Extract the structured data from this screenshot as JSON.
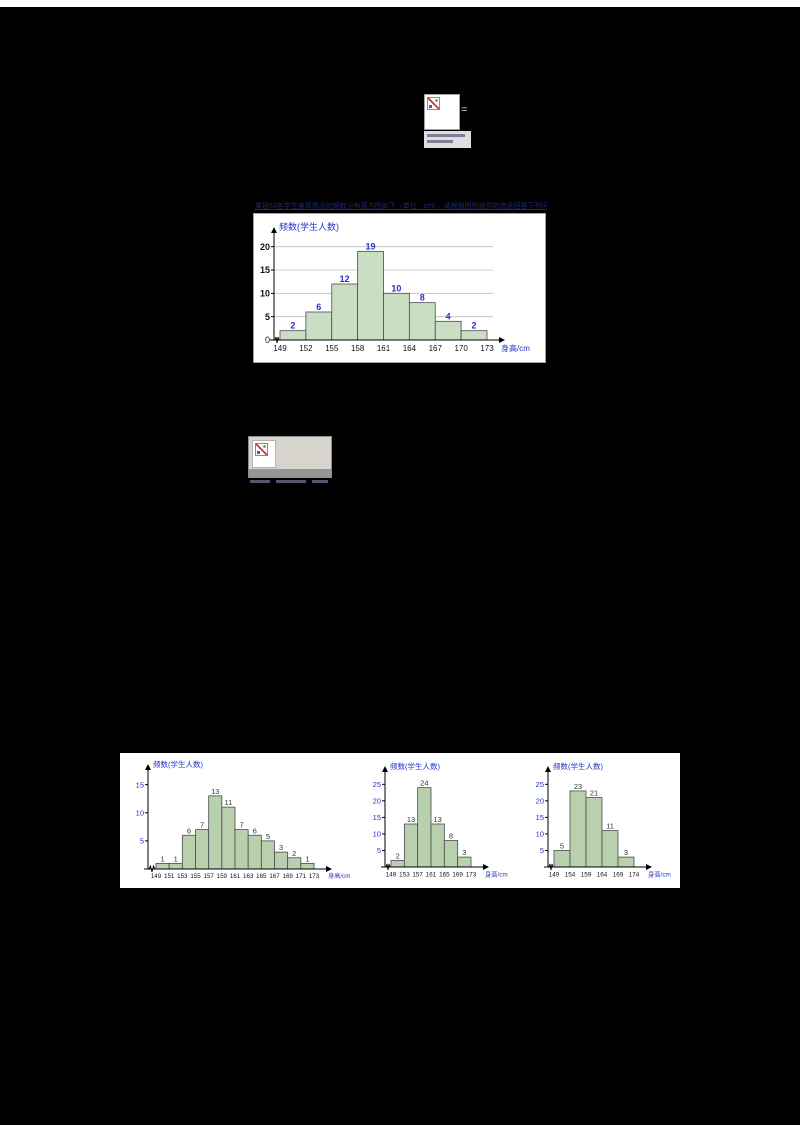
{
  "document": {
    "background_color": "#000000",
    "problem_text": "某班63名学生身高情况的频数分布直方图如下（单位：cm），请根据图形提供的信息回答下列问题："
  },
  "placeholders": {
    "equation_symbol": "="
  },
  "chart_data": [
    {
      "type": "bar",
      "title": "频数(学生人数)",
      "xlabel": "身高/cm",
      "categories": [
        "149",
        "152",
        "155",
        "158",
        "161",
        "164",
        "167",
        "170",
        "173"
      ],
      "values": [
        2,
        6,
        12,
        19,
        10,
        8,
        4,
        2
      ],
      "y_ticks": [
        5,
        10,
        15,
        20
      ],
      "ylim": [
        0,
        21
      ],
      "zero_label": "0",
      "grid": true,
      "axis_break": true,
      "bold_labels": true,
      "legend": "none",
      "bar_color": "#c9dec2",
      "bar_border": "#4a4a4a",
      "value_color": "#2433c6",
      "axis_title_color": "#2433c6",
      "ytick_color": "#111111",
      "xtick_color": "#111111"
    },
    {
      "type": "bar",
      "title": "频数(学生人数)",
      "xlabel": "身高/cm",
      "categories": [
        "149",
        "151",
        "153",
        "155",
        "157",
        "159",
        "161",
        "163",
        "165",
        "167",
        "169",
        "171",
        "173"
      ],
      "values": [
        1,
        1,
        6,
        7,
        13,
        11,
        7,
        6,
        5,
        3,
        2,
        1
      ],
      "y_ticks": [
        5,
        10,
        15
      ],
      "ylim": [
        0,
        16
      ],
      "grid": false,
      "axis_break": true,
      "bold_labels": false,
      "legend": "none",
      "bar_color": "#b9d0ae",
      "bar_border": "#4a4a4a",
      "value_color": "#333333",
      "axis_title_color": "#2433c6",
      "ytick_color": "#2433c6",
      "xtick_color": "#111111"
    },
    {
      "type": "bar",
      "title": "频数(学生人数)",
      "xlabel": "身高/cm",
      "categories": [
        "149",
        "153",
        "157",
        "161",
        "165",
        "169",
        "173"
      ],
      "values": [
        2,
        13,
        24,
        13,
        8,
        3
      ],
      "y_ticks": [
        5,
        10,
        15,
        20,
        25
      ],
      "ylim": [
        0,
        26
      ],
      "grid": false,
      "axis_break": true,
      "bold_labels": false,
      "legend": "none",
      "bar_color": "#b9d0ae",
      "bar_border": "#4a4a4a",
      "value_color": "#333333",
      "axis_title_color": "#2433c6",
      "ytick_color": "#2433c6",
      "xtick_color": "#111111"
    },
    {
      "type": "bar",
      "title": "频数(学生人数)",
      "xlabel": "身高/cm",
      "categories": [
        "149",
        "154",
        "159",
        "164",
        "169",
        "174"
      ],
      "values": [
        5,
        23,
        21,
        11,
        3
      ],
      "y_ticks": [
        5,
        10,
        15,
        20,
        25
      ],
      "ylim": [
        0,
        26
      ],
      "grid": false,
      "axis_break": true,
      "bold_labels": false,
      "legend": "none",
      "bar_color": "#b9d0ae",
      "bar_border": "#4a4a4a",
      "value_color": "#333333",
      "axis_title_color": "#2433c6",
      "ytick_color": "#2433c6",
      "xtick_color": "#111111"
    }
  ]
}
